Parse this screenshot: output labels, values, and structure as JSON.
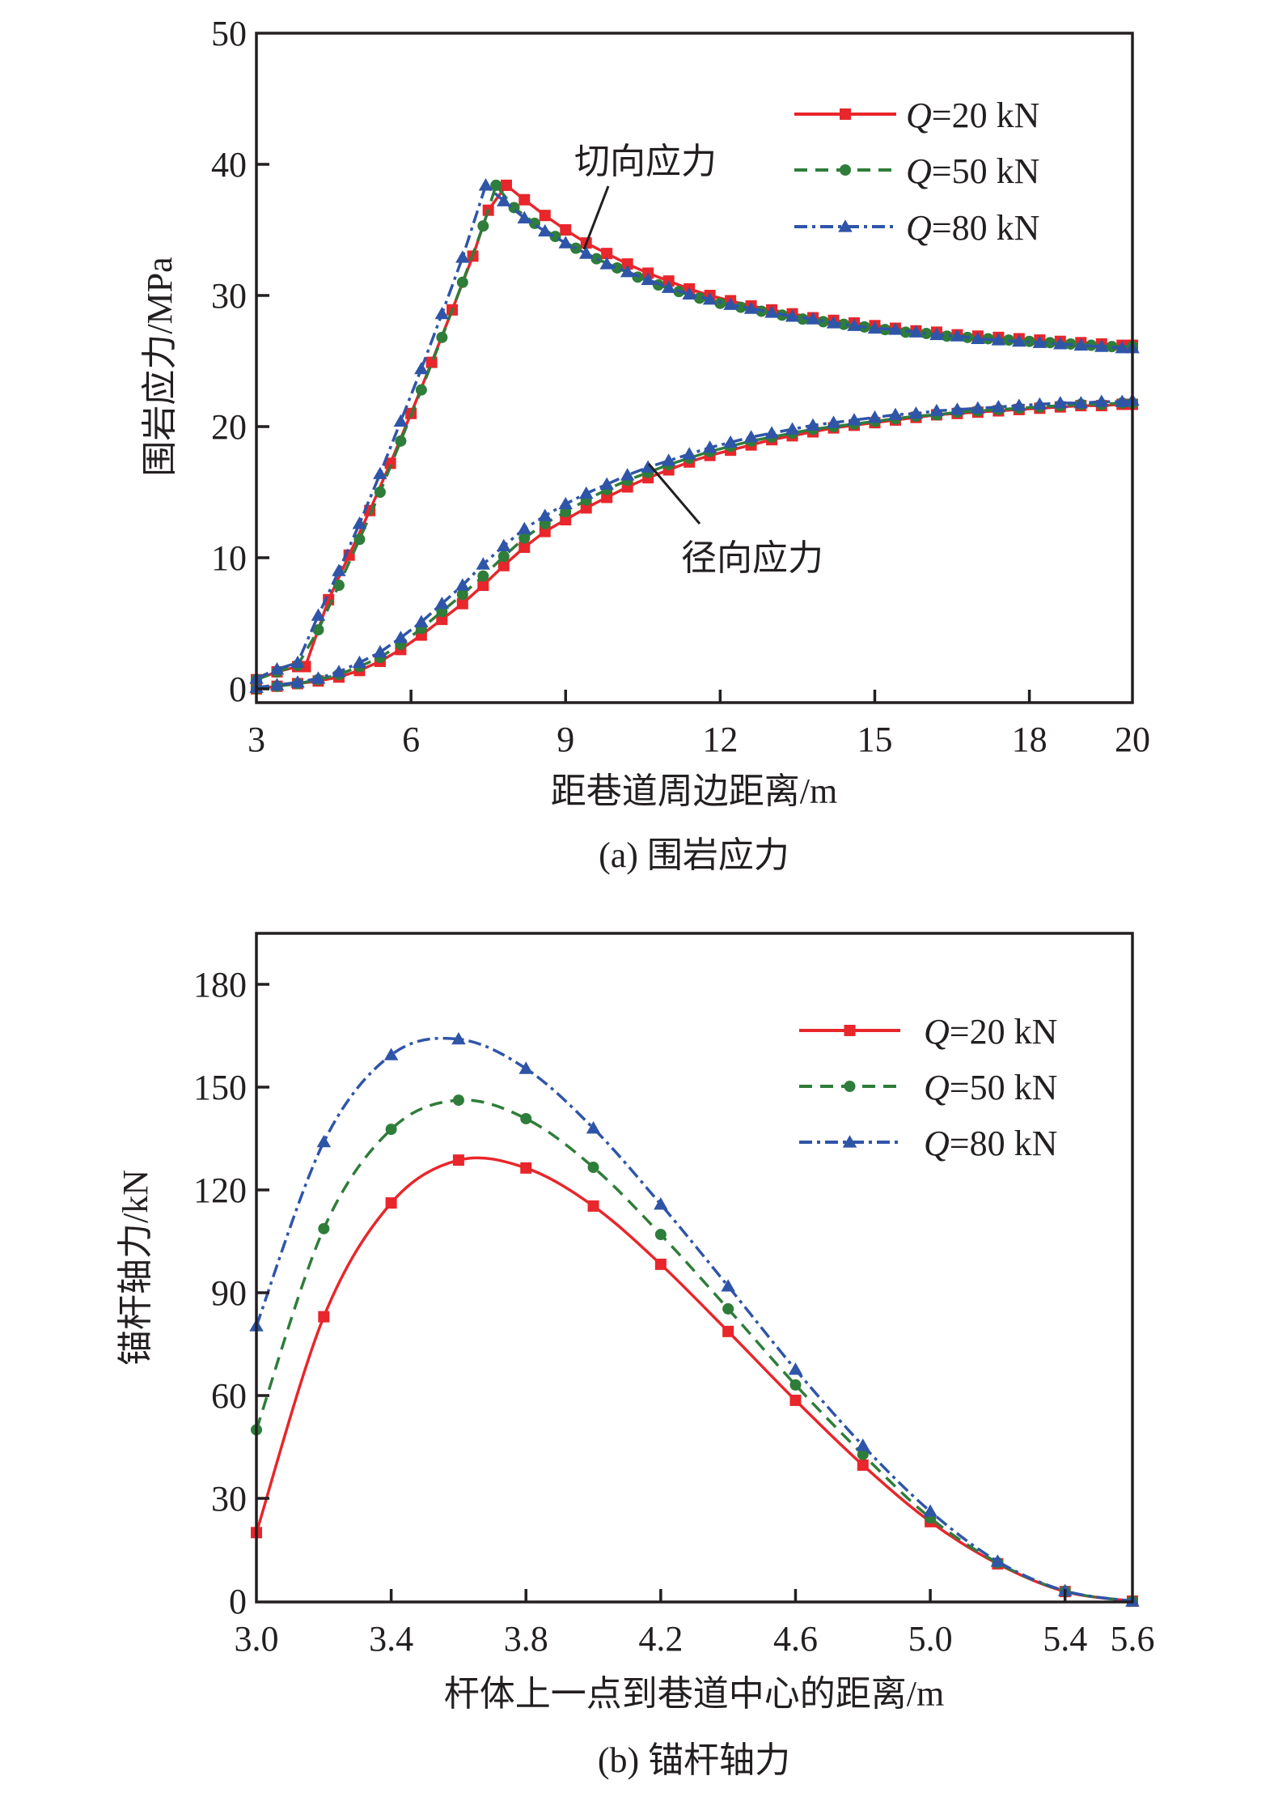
{
  "chart_data": [
    {
      "id": "a",
      "type": "line",
      "caption": "(a) 围岩应力",
      "xlabel": "距巷道周边距离/m",
      "ylabel": "围岩应力/MPa",
      "xlim": [
        3,
        20
      ],
      "ylim": [
        -1.05,
        50
      ],
      "xticks": [
        3,
        6,
        9,
        12,
        15,
        18,
        20
      ],
      "xtick_labels": [
        "3",
        "6",
        "9",
        "12",
        "15",
        "18",
        "20"
      ],
      "yticks": [
        0,
        10,
        20,
        30,
        40,
        50
      ],
      "ytick_labels": [
        "0",
        "10",
        "20",
        "30",
        "40",
        "50"
      ],
      "grid": false,
      "legend_position": "top-right",
      "annotations": [
        {
          "text": "切向应力",
          "points_to": {
            "x": 9.3,
            "y": 33.7
          }
        },
        {
          "text": "径向应力",
          "points_to": {
            "x": 10.6,
            "y": 17.0
          }
        }
      ],
      "series": [
        {
          "name": "Q=20 kN",
          "q_label": "Q",
          "q_rest": "=20 kN",
          "color": "#e8262b",
          "dash": "solid",
          "marker": "square",
          "tangential": {
            "x": [
              3.0,
              3.4,
              3.8,
              3.95,
              4.4,
              4.8,
              5.2,
              5.6,
              6.0,
              6.4,
              6.8,
              7.2,
              7.5,
              7.85,
              8.2,
              8.6,
              9.0,
              9.4,
              9.8,
              10.2,
              10.6,
              11.0,
              11.4,
              11.8,
              12.2,
              12.6,
              13.0,
              13.4,
              13.8,
              14.2,
              14.6,
              15.0,
              15.4,
              15.8,
              16.2,
              16.6,
              17.0,
              17.4,
              17.8,
              18.2,
              18.6,
              19.0,
              19.4,
              19.8,
              20.0
            ],
            "y": [
              0.7,
              1.3,
              1.7,
              1.7,
              6.8,
              10.2,
              13.6,
              17.2,
              21.0,
              24.9,
              28.9,
              33.0,
              36.5,
              38.4,
              37.3,
              36.1,
              35.0,
              34.0,
              33.2,
              32.4,
              31.7,
              31.1,
              30.5,
              30.0,
              29.6,
              29.2,
              28.9,
              28.6,
              28.3,
              28.1,
              27.9,
              27.7,
              27.5,
              27.3,
              27.2,
              27.0,
              26.9,
              26.8,
              26.7,
              26.6,
              26.5,
              26.4,
              26.3,
              26.2,
              26.2
            ]
          },
          "radial": {
            "x": [
              3.0,
              3.4,
              3.8,
              4.2,
              4.6,
              5.0,
              5.4,
              5.8,
              6.2,
              6.6,
              7.0,
              7.4,
              7.8,
              8.2,
              8.6,
              9.0,
              9.4,
              9.8,
              10.2,
              10.6,
              11.0,
              11.4,
              11.8,
              12.2,
              12.6,
              13.0,
              13.4,
              13.8,
              14.2,
              14.6,
              15.0,
              15.4,
              15.8,
              16.2,
              16.6,
              17.0,
              17.4,
              17.8,
              18.2,
              18.6,
              19.0,
              19.4,
              19.8,
              20.0
            ],
            "y": [
              0.0,
              0.2,
              0.4,
              0.6,
              0.9,
              1.4,
              2.1,
              3.0,
              4.1,
              5.3,
              6.5,
              7.9,
              9.4,
              10.8,
              12.0,
              12.9,
              13.8,
              14.6,
              15.4,
              16.1,
              16.7,
              17.3,
              17.8,
              18.2,
              18.6,
              19.0,
              19.3,
              19.6,
              19.9,
              20.1,
              20.3,
              20.5,
              20.7,
              20.9,
              21.0,
              21.1,
              21.2,
              21.3,
              21.4,
              21.5,
              21.6,
              21.6,
              21.7,
              21.7
            ]
          }
        },
        {
          "name": "Q=50 kN",
          "q_label": "Q",
          "q_rest": "=50 kN",
          "color": "#2e7d3a",
          "dash": "dashed",
          "marker": "circle",
          "tangential": {
            "x": [
              3.0,
              3.4,
              3.8,
              4.2,
              4.6,
              5.0,
              5.4,
              5.8,
              6.2,
              6.6,
              7.0,
              7.4,
              7.65,
              8.0,
              8.4,
              8.8,
              9.2,
              9.6,
              10.0,
              10.4,
              10.8,
              11.2,
              11.6,
              12.0,
              12.4,
              12.8,
              13.2,
              13.6,
              14.0,
              14.4,
              14.8,
              15.2,
              15.6,
              16.0,
              16.4,
              16.8,
              17.2,
              17.6,
              18.0,
              18.4,
              18.8,
              19.2,
              19.6,
              20.0
            ],
            "y": [
              0.7,
              1.3,
              1.8,
              4.5,
              7.9,
              11.4,
              15.0,
              18.9,
              22.8,
              26.8,
              31.0,
              35.3,
              38.4,
              36.7,
              35.5,
              34.5,
              33.6,
              32.8,
              32.1,
              31.4,
              30.8,
              30.3,
              29.8,
              29.4,
              29.1,
              28.8,
              28.5,
              28.2,
              28.0,
              27.8,
              27.6,
              27.4,
              27.2,
              27.1,
              26.9,
              26.8,
              26.7,
              26.6,
              26.5,
              26.4,
              26.3,
              26.2,
              26.1,
              26.1
            ]
          },
          "radial": {
            "x": [
              3.0,
              3.4,
              3.8,
              4.2,
              4.6,
              5.0,
              5.4,
              5.8,
              6.2,
              6.6,
              7.0,
              7.4,
              7.8,
              8.2,
              8.6,
              9.0,
              9.4,
              9.8,
              10.2,
              10.6,
              11.0,
              11.4,
              11.8,
              12.2,
              12.6,
              13.0,
              13.4,
              13.8,
              14.2,
              14.6,
              15.0,
              15.4,
              15.8,
              16.2,
              16.6,
              17.0,
              17.4,
              17.8,
              18.2,
              18.6,
              19.0,
              19.4,
              19.8,
              20.0
            ],
            "y": [
              0.0,
              0.2,
              0.4,
              0.7,
              1.1,
              1.7,
              2.4,
              3.4,
              4.6,
              5.9,
              7.2,
              8.6,
              10.1,
              11.5,
              12.6,
              13.5,
              14.4,
              15.2,
              15.9,
              16.5,
              17.1,
              17.6,
              18.1,
              18.5,
              18.9,
              19.2,
              19.5,
              19.8,
              20.0,
              20.2,
              20.4,
              20.6,
              20.8,
              20.9,
              21.1,
              21.2,
              21.3,
              21.4,
              21.5,
              21.6,
              21.7,
              21.7,
              21.8,
              21.8
            ]
          }
        },
        {
          "name": "Q=80 kN",
          "q_label": "Q",
          "q_rest": "=80 kN",
          "color": "#2f55a8",
          "dash": "dashdot",
          "marker": "triangle",
          "tangential": {
            "x": [
              3.0,
              3.4,
              3.8,
              4.2,
              4.6,
              5.0,
              5.4,
              5.8,
              6.2,
              6.6,
              7.0,
              7.45,
              7.8,
              8.2,
              8.6,
              9.0,
              9.4,
              9.8,
              10.2,
              10.6,
              11.0,
              11.4,
              11.8,
              12.2,
              12.6,
              13.0,
              13.4,
              13.8,
              14.2,
              14.6,
              15.0,
              15.4,
              15.8,
              16.2,
              16.6,
              17.0,
              17.4,
              17.8,
              18.2,
              18.6,
              19.0,
              19.4,
              19.8,
              20.0
            ],
            "y": [
              0.8,
              1.5,
              2.0,
              5.6,
              9.0,
              12.6,
              16.4,
              20.4,
              24.4,
              28.6,
              32.9,
              38.4,
              37.2,
              35.9,
              34.9,
              34.0,
              33.2,
              32.4,
              31.8,
              31.2,
              30.6,
              30.1,
              29.7,
              29.3,
              29.0,
              28.7,
              28.4,
              28.2,
              27.9,
              27.7,
              27.5,
              27.4,
              27.2,
              27.0,
              26.9,
              26.7,
              26.6,
              26.5,
              26.4,
              26.3,
              26.2,
              26.1,
              26.0,
              26.0
            ]
          },
          "radial": {
            "x": [
              3.0,
              3.4,
              3.8,
              4.2,
              4.6,
              5.0,
              5.4,
              5.8,
              6.2,
              6.6,
              7.0,
              7.4,
              7.8,
              8.2,
              8.6,
              9.0,
              9.4,
              9.8,
              10.2,
              10.6,
              11.0,
              11.4,
              11.8,
              12.2,
              12.6,
              13.0,
              13.4,
              13.8,
              14.2,
              14.6,
              15.0,
              15.4,
              15.8,
              16.2,
              16.6,
              17.0,
              17.4,
              17.8,
              18.2,
              18.6,
              19.0,
              19.4,
              19.8,
              20.0
            ],
            "y": [
              0.1,
              0.3,
              0.5,
              0.8,
              1.3,
              2.0,
              2.8,
              3.9,
              5.1,
              6.5,
              7.9,
              9.5,
              10.9,
              12.2,
              13.2,
              14.1,
              14.9,
              15.6,
              16.3,
              16.9,
              17.4,
              17.9,
              18.4,
              18.8,
              19.2,
              19.5,
              19.8,
              20.1,
              20.3,
              20.5,
              20.7,
              20.9,
              21.0,
              21.2,
              21.3,
              21.4,
              21.5,
              21.6,
              21.7,
              21.8,
              21.8,
              21.9,
              21.9,
              22.0
            ]
          }
        }
      ]
    },
    {
      "id": "b",
      "type": "line",
      "caption": "(b) 锚杆轴力",
      "xlabel": "杆体上一点到巷道中心的距离/m",
      "ylabel": "锚杆轴力/kN",
      "xlim": [
        3.0,
        5.6
      ],
      "ylim": [
        0,
        195
      ],
      "xticks": [
        3.0,
        3.4,
        3.8,
        4.2,
        4.6,
        5.0,
        5.4,
        5.6
      ],
      "xtick_labels": [
        "3.0",
        "3.4",
        "3.8",
        "4.2",
        "4.6",
        "5.0",
        "5.4",
        "5.6"
      ],
      "yticks": [
        0,
        30,
        60,
        90,
        120,
        150,
        180
      ],
      "ytick_labels": [
        "0",
        "30",
        "60",
        "90",
        "120",
        "150",
        "180"
      ],
      "grid": false,
      "legend_position": "top-right",
      "series": [
        {
          "name": "Q=20 kN",
          "q_label": "Q",
          "q_rest": "=20 kN",
          "color": "#e8262b",
          "dash": "solid",
          "marker": "square",
          "x": [
            3.0,
            3.2,
            3.4,
            3.6,
            3.8,
            4.0,
            4.2,
            4.4,
            4.6,
            4.8,
            5.0,
            5.2,
            5.4,
            5.6
          ],
          "y": [
            20,
            83,
            116.2,
            128.7,
            126.4,
            115.3,
            98.3,
            78.7,
            58.6,
            39.7,
            23.2,
            10.9,
            2.8,
            0
          ]
        },
        {
          "name": "Q=50 kN",
          "q_label": "Q",
          "q_rest": "=50 kN",
          "color": "#2e7d3a",
          "dash": "dashed",
          "marker": "circle",
          "x": [
            3.0,
            3.2,
            3.4,
            3.6,
            3.8,
            4.0,
            4.2,
            4.4,
            4.6,
            4.8,
            5.0,
            5.2,
            5.4,
            5.6
          ],
          "y": [
            50,
            108.7,
            137.7,
            146.2,
            140.8,
            126.6,
            107,
            85.3,
            63.1,
            42.8,
            24.3,
            11.2,
            2.9,
            0
          ]
        },
        {
          "name": "Q=80 kN",
          "q_label": "Q",
          "q_rest": "=80 kN",
          "color": "#2f55a8",
          "dash": "dashdot",
          "marker": "triangle",
          "x": [
            3.0,
            3.2,
            3.4,
            3.6,
            3.8,
            4.0,
            4.2,
            4.4,
            4.6,
            4.8,
            5.0,
            5.2,
            5.4,
            5.6
          ],
          "y": [
            80.3,
            134,
            159.4,
            164,
            155.4,
            138,
            115.8,
            91.9,
            67.6,
            45.4,
            26.2,
            11.6,
            3.0,
            0
          ]
        }
      ]
    }
  ]
}
